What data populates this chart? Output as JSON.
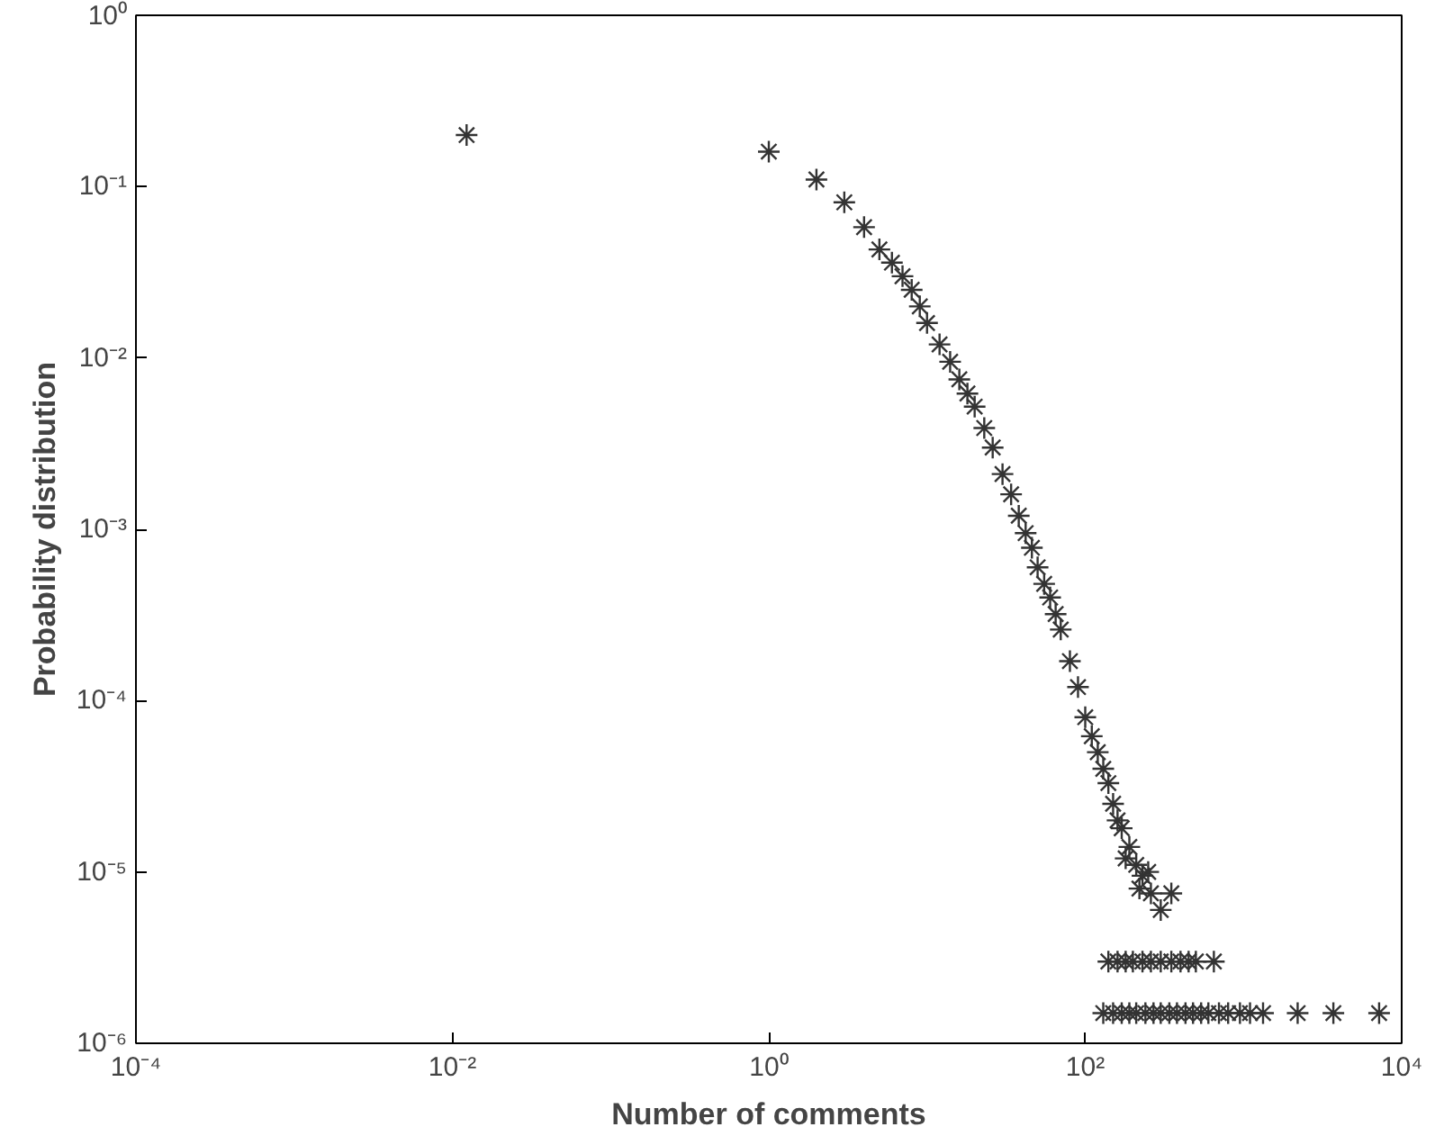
{
  "chart_data": {
    "type": "scatter",
    "xlabel": "Number of comments",
    "ylabel": "Probability distribution",
    "log": "xy",
    "marker": "cross",
    "color": "#333333",
    "x": [
      0.0123,
      1,
      2,
      3,
      4,
      5,
      6,
      7,
      8,
      9,
      10,
      12,
      14,
      16,
      18,
      20,
      23,
      26,
      30,
      34,
      38,
      42,
      46,
      50,
      55,
      60,
      65,
      70,
      80,
      90,
      100,
      110,
      120,
      130,
      140,
      150,
      170,
      190,
      210,
      230,
      260,
      300,
      160,
      180,
      250,
      350,
      220,
      140,
      160,
      180,
      200,
      230,
      260,
      300,
      350,
      400,
      450,
      500,
      650,
      130,
      150,
      170,
      190,
      210,
      240,
      270,
      300,
      340,
      380,
      430,
      480,
      540,
      600,
      700,
      800,
      950,
      1100,
      1330,
      2200,
      3700,
      7200
    ],
    "values": [
      0.2,
      0.16,
      0.11,
      0.081,
      0.058,
      0.043,
      0.036,
      0.03,
      0.025,
      0.02,
      0.016,
      0.012,
      0.0095,
      0.0075,
      0.0062,
      0.0052,
      0.0039,
      0.003,
      0.0021,
      0.0016,
      0.0012,
      0.00095,
      0.00078,
      0.0006,
      0.00048,
      0.0004,
      0.00032,
      0.00026,
      0.00017,
      0.00012,
      8e-05,
      6.2e-05,
      5e-05,
      4e-05,
      3.3e-05,
      2.5e-05,
      1.8e-05,
      1.4e-05,
      1.1e-05,
      9.5e-06,
      7.5e-06,
      6e-06,
      2e-05,
      1.2e-05,
      1e-05,
      7.5e-06,
      8e-06,
      3e-06,
      3e-06,
      3e-06,
      3e-06,
      3e-06,
      3e-06,
      3e-06,
      3e-06,
      3e-06,
      3e-06,
      3e-06,
      3e-06,
      1.5e-06,
      1.5e-06,
      1.5e-06,
      1.5e-06,
      1.5e-06,
      1.5e-06,
      1.5e-06,
      1.5e-06,
      1.5e-06,
      1.5e-06,
      1.5e-06,
      1.5e-06,
      1.5e-06,
      1.5e-06,
      1.5e-06,
      1.5e-06,
      1.5e-06,
      1.5e-06,
      1.5e-06,
      1.5e-06,
      1.5e-06,
      1.5e-06
    ],
    "xlim": [
      0.0001,
      10000
    ],
    "ylim": [
      1e-06,
      1
    ],
    "xticks": [
      {
        "value": 0.0001,
        "label": "10⁻⁴"
      },
      {
        "value": 0.01,
        "label": "10⁻²"
      },
      {
        "value": 1,
        "label": "10⁰"
      },
      {
        "value": 100,
        "label": "10²"
      },
      {
        "value": 10000,
        "label": "10⁴"
      }
    ],
    "yticks": [
      {
        "value": 1e-06,
        "label": "10⁻⁶"
      },
      {
        "value": 1e-05,
        "label": "10⁻⁵"
      },
      {
        "value": 0.0001,
        "label": "10⁻⁴"
      },
      {
        "value": 0.001,
        "label": "10⁻³"
      },
      {
        "value": 0.01,
        "label": "10⁻²"
      },
      {
        "value": 0.1,
        "label": "10⁻¹"
      },
      {
        "value": 1,
        "label": "10⁰"
      }
    ]
  }
}
